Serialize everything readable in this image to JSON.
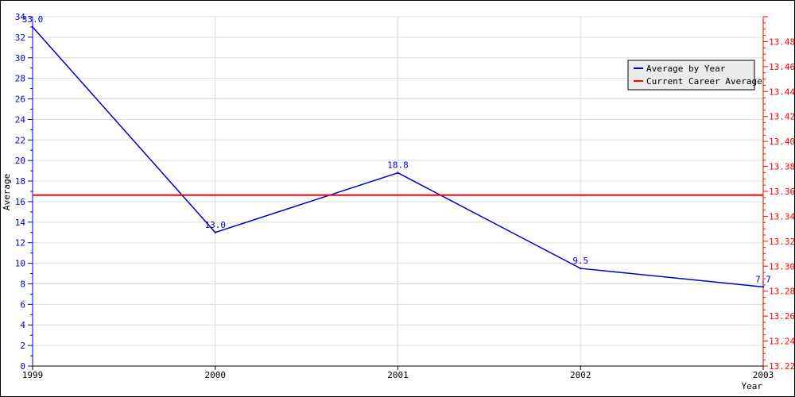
{
  "chart_data": {
    "type": "line",
    "xlabel": "Year",
    "ylabel": "Average",
    "categories": [
      "1999",
      "2000",
      "2001",
      "2002",
      "2003"
    ],
    "ylim": [
      0,
      34
    ],
    "y_ticks": [
      "0",
      "2",
      "4",
      "6",
      "8",
      "10",
      "12",
      "14",
      "16",
      "18",
      "20",
      "22",
      "24",
      "26",
      "28",
      "30",
      "32",
      "34"
    ],
    "y2lim": [
      13.22,
      13.5
    ],
    "y2_ticks": [
      "13.22",
      "13.24",
      "13.26",
      "13.28",
      "13.30",
      "13.32",
      "13.34",
      "13.36",
      "13.38",
      "13.40",
      "13.42",
      "13.44",
      "13.46",
      "13.48"
    ],
    "grid": true,
    "legend_position": "top-right",
    "series": [
      {
        "name": "Average by Year",
        "axis": "left",
        "color": "#0000cc",
        "values": [
          33.0,
          13.0,
          18.8,
          9.5,
          7.7
        ],
        "labels": [
          "33.0",
          "13.0",
          "18.8",
          "9.5",
          "7.7"
        ]
      },
      {
        "name": "Current Career Average",
        "axis": "right",
        "color": "#ff0000",
        "constant": 13.357
      }
    ],
    "left_axis_color": "#0000cc",
    "right_axis_color": "#ff0000"
  }
}
